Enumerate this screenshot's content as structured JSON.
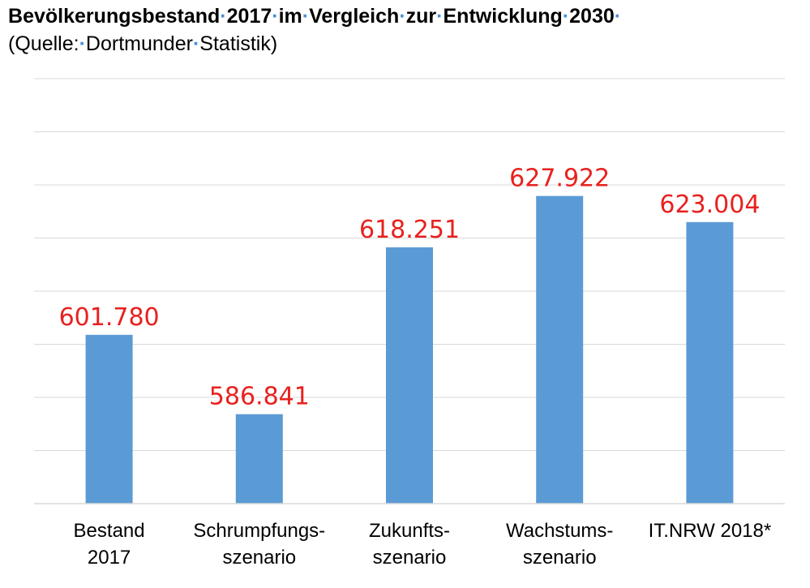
{
  "chart_data": {
    "type": "bar",
    "title": "Bevölkerungsbestand·2017·im·Vergleich·zur·Entwicklung·2030·",
    "subtitle": "(Quelle:·Dortmunder·Statistik)",
    "categories": [
      [
        "Bestand",
        "2017"
      ],
      [
        "Schrumpfungs-",
        "szenario"
      ],
      [
        "Zukunfts-",
        "szenario"
      ],
      [
        "Wachstums-",
        "szenario"
      ],
      [
        "IT.NRW 2018*"
      ]
    ],
    "values": [
      601780,
      586841,
      618251,
      627922,
      623004
    ],
    "value_labels": [
      "601.780",
      "586.841",
      "618.251",
      "627.922",
      "623.004"
    ],
    "ylim": [
      570000,
      650000
    ],
    "grid": true,
    "bar_color": "#5b9bd5",
    "label_color": "#e8211e",
    "grid_color": "#d9d9d9"
  }
}
